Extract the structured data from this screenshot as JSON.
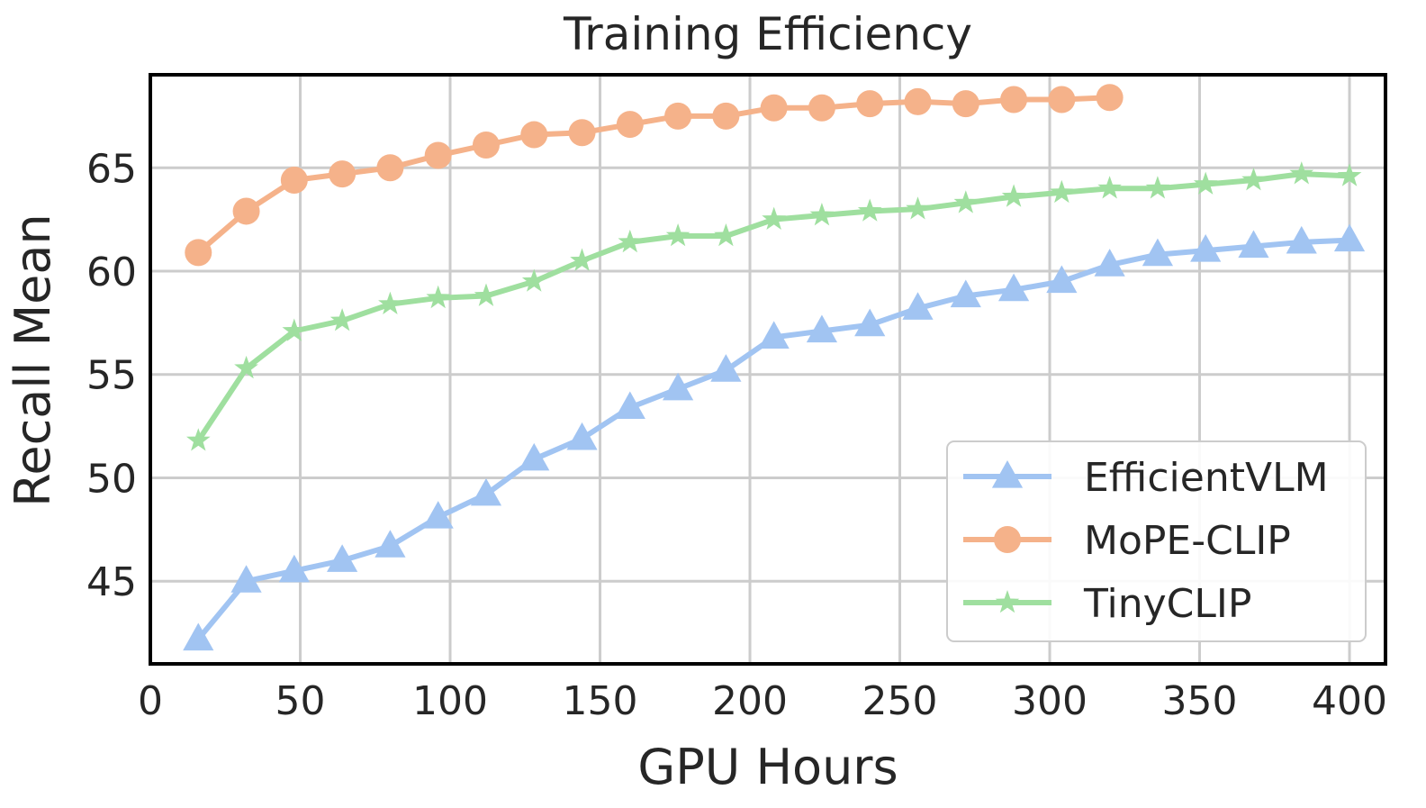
{
  "chart_data": {
    "type": "line",
    "title": "Training Efficiency",
    "xlabel": "GPU Hours",
    "ylabel": "Recall Mean",
    "xlim": [
      0,
      412
    ],
    "ylim": [
      41,
      69.5
    ],
    "xticks": [
      0,
      50,
      100,
      150,
      200,
      250,
      300,
      350,
      400
    ],
    "yticks": [
      45,
      50,
      55,
      60,
      65
    ],
    "grid": true,
    "legend_position": "lower-right",
    "series": [
      {
        "name": "EfficientVLM",
        "color": "#a1c4f2",
        "marker": "triangle",
        "x": [
          16,
          32,
          48,
          64,
          80,
          96,
          112,
          128,
          144,
          160,
          176,
          192,
          208,
          224,
          240,
          256,
          272,
          288,
          304,
          320,
          336,
          352,
          368,
          384,
          400
        ],
        "y": [
          42.2,
          45.0,
          45.5,
          46.0,
          46.7,
          48.1,
          49.2,
          50.9,
          51.9,
          53.4,
          54.3,
          55.2,
          56.8,
          57.1,
          57.4,
          58.2,
          58.8,
          59.1,
          59.5,
          60.3,
          60.8,
          61.0,
          61.2,
          61.4,
          61.5
        ]
      },
      {
        "name": "MoPE-CLIP",
        "color": "#f5b28a",
        "marker": "circle",
        "x": [
          16,
          32,
          48,
          64,
          80,
          96,
          112,
          128,
          144,
          160,
          176,
          192,
          208,
          224,
          240,
          256,
          272,
          288,
          304,
          320
        ],
        "y": [
          60.9,
          62.9,
          64.4,
          64.7,
          65.0,
          65.6,
          66.1,
          66.6,
          66.7,
          67.1,
          67.5,
          67.5,
          67.9,
          67.9,
          68.1,
          68.2,
          68.1,
          68.3,
          68.3,
          68.4
        ]
      },
      {
        "name": "TinyCLIP",
        "color": "#9fdf9f",
        "marker": "star",
        "x": [
          16,
          32,
          48,
          64,
          80,
          96,
          112,
          128,
          144,
          160,
          176,
          192,
          208,
          224,
          240,
          256,
          272,
          288,
          304,
          320,
          336,
          352,
          368,
          384,
          400
        ],
        "y": [
          51.8,
          55.3,
          57.1,
          57.6,
          58.4,
          58.7,
          58.8,
          59.5,
          60.5,
          61.4,
          61.7,
          61.7,
          62.5,
          62.7,
          62.9,
          63.0,
          63.3,
          63.6,
          63.8,
          64.0,
          64.0,
          64.2,
          64.4,
          64.7,
          64.6
        ]
      }
    ]
  }
}
